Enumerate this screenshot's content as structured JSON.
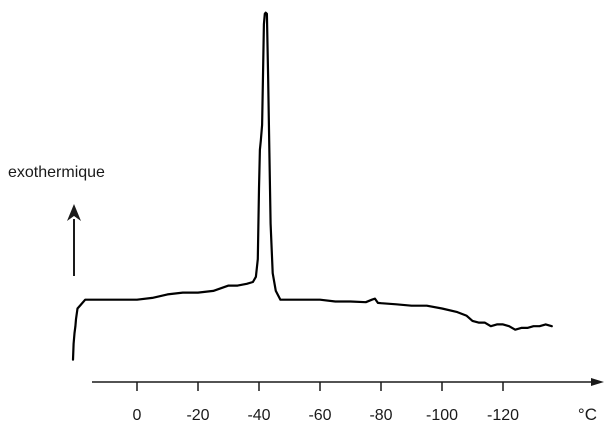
{
  "chart_data": {
    "type": "line",
    "title": "",
    "xlabel": "°C",
    "ylabel": "exothermique",
    "x_direction": "descending",
    "xlim": [
      15,
      -150
    ],
    "ylim": [
      0,
      100
    ],
    "y_ticks": "none",
    "grid": false,
    "legend": "none",
    "x_ticks": [
      0,
      -20,
      -40,
      -60,
      -80,
      -100,
      -120
    ],
    "x_tick_labels": [
      "0",
      "-20",
      "-40",
      "-60",
      "-80",
      "-100",
      "-120"
    ],
    "series": [
      {
        "color": "#000000",
        "x": [
          21,
          20.8,
          20.5,
          20.2,
          20,
          19.5,
          18.5,
          17,
          15,
          10,
          5,
          0,
          -5,
          -10,
          -15,
          -20,
          -25,
          -30,
          -33,
          -36,
          -38,
          -39,
          -39.6,
          -40,
          -40.3,
          -40.6,
          -41,
          -41.3,
          -41.6,
          -41.9,
          -42.2,
          -42.6,
          -43,
          -43.2,
          -43.4,
          -43.8,
          -44.5,
          -45.5,
          -47,
          -50,
          -55,
          -60,
          -65,
          -70,
          -75,
          -77,
          -78,
          -79,
          -80,
          -85,
          -90,
          -95,
          -100,
          -105,
          -108,
          -110,
          -112,
          -114,
          -116,
          -118,
          -120,
          -122,
          -124,
          -126,
          -128,
          -130,
          -132,
          -134,
          -136
        ],
        "y": [
          1.5,
          6,
          9,
          11,
          13,
          16,
          17,
          18.5,
          18.5,
          18.5,
          18.5,
          18.5,
          19,
          20,
          20.5,
          20.5,
          21,
          22.5,
          22.5,
          23,
          23.5,
          25,
          30,
          50,
          61,
          63.5,
          68,
          82,
          96.5,
          99.5,
          99.8,
          99.5,
          82,
          70,
          60,
          40,
          26,
          21,
          18.5,
          18.5,
          18.5,
          18.5,
          18,
          18,
          17.8,
          18.5,
          18.8,
          17.6,
          17.5,
          17.2,
          16.8,
          16.8,
          16,
          15,
          14,
          12.5,
          12,
          12,
          11,
          11.5,
          11.5,
          11,
          10,
          10.5,
          10.5,
          11,
          11,
          11.5,
          11
        ]
      }
    ]
  }
}
